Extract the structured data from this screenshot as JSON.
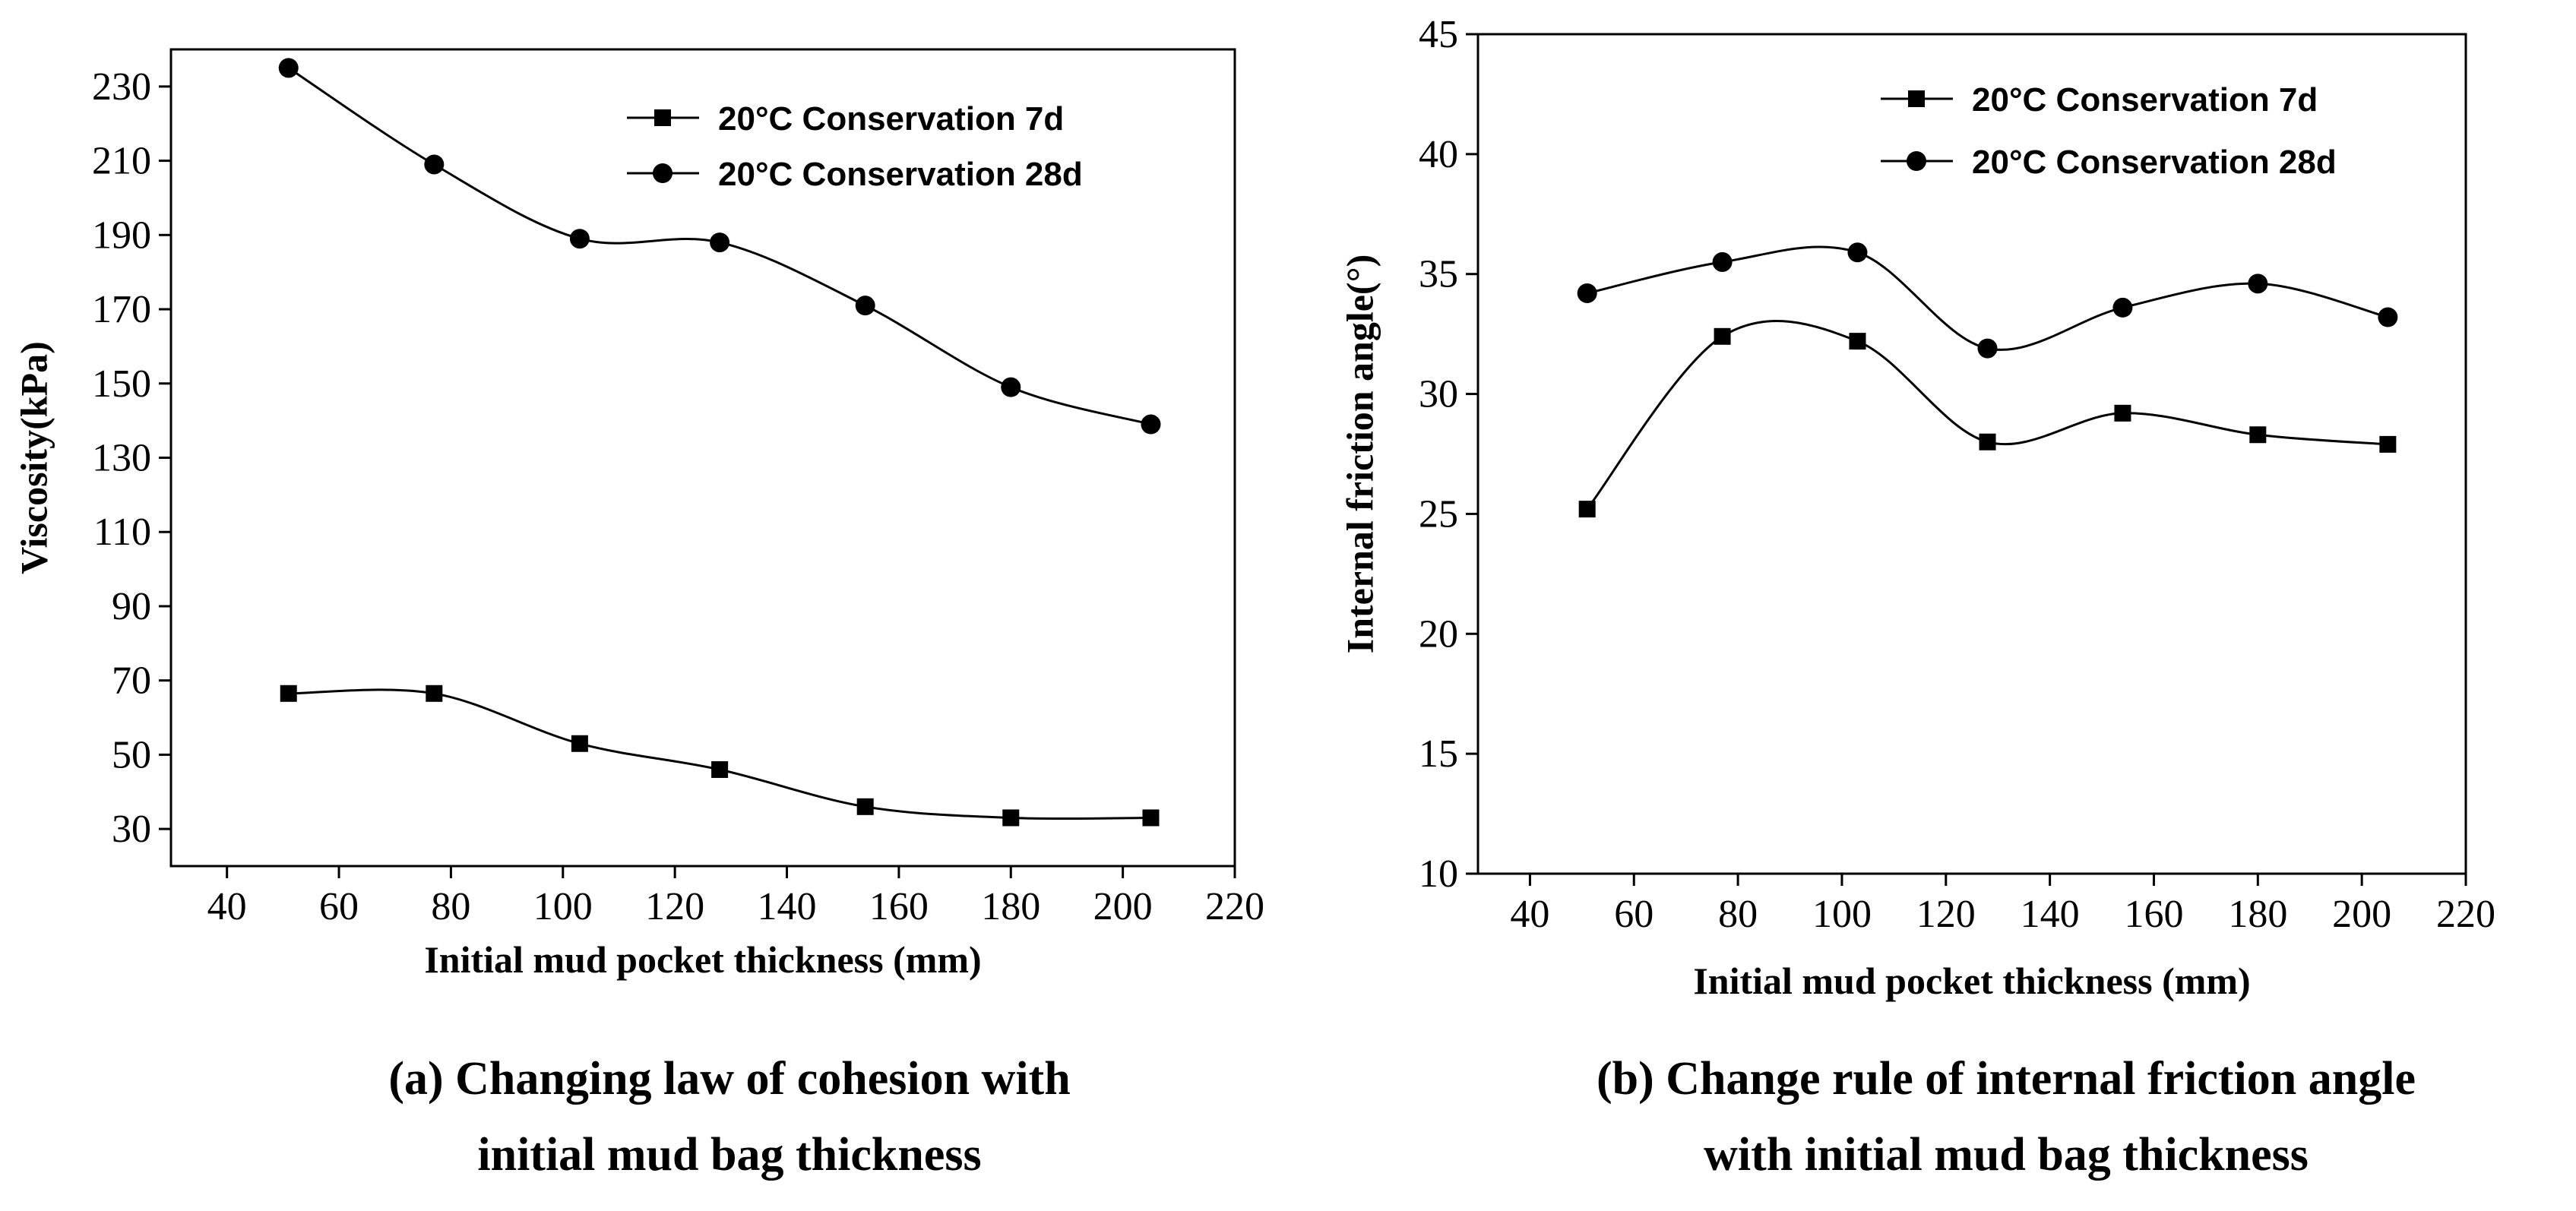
{
  "chart_data": [
    {
      "type": "line",
      "caption": [
        "(a) Changing law of cohesion with",
        "initial mud bag thickness"
      ],
      "xlabel": "Initial mud pocket thickness (mm)",
      "ylabel": "Viscosity(kPa)",
      "xlim": [
        30,
        220
      ],
      "ylim": [
        20,
        240
      ],
      "xticks": [
        40,
        60,
        80,
        100,
        120,
        140,
        160,
        180,
        200,
        220
      ],
      "yticks": [
        30,
        50,
        70,
        90,
        110,
        130,
        150,
        170,
        190,
        210,
        230
      ],
      "legend_position": "top-right",
      "series": [
        {
          "name": "20°C Conservation 7d",
          "marker": "square",
          "x": [
            51,
            77,
            103,
            128,
            154,
            180,
            205
          ],
          "y": [
            66.5,
            66.5,
            53,
            46,
            36,
            33,
            33
          ]
        },
        {
          "name": "20°C Conservation 28d",
          "marker": "circle",
          "x": [
            51,
            77,
            103,
            128,
            154,
            180,
            205
          ],
          "y": [
            235,
            209,
            189,
            188,
            171,
            149,
            139
          ]
        }
      ]
    },
    {
      "type": "line",
      "caption": [
        "(b) Change rule of internal friction angle",
        "with initial mud bag thickness"
      ],
      "xlabel": "Initial mud pocket thickness (mm)",
      "ylabel": "Internal friction angle(°)",
      "xlim": [
        30,
        220
      ],
      "ylim": [
        10,
        45
      ],
      "xticks": [
        40,
        60,
        80,
        100,
        120,
        140,
        160,
        180,
        200,
        220
      ],
      "yticks": [
        10,
        15,
        20,
        25,
        30,
        35,
        40,
        45
      ],
      "legend_position": "top-right",
      "series": [
        {
          "name": "20°C Conservation 7d",
          "marker": "square",
          "x": [
            51,
            77,
            103,
            128,
            154,
            180,
            205
          ],
          "y": [
            25.2,
            32.4,
            32.2,
            28,
            29.2,
            28.3,
            27.9
          ]
        },
        {
          "name": "20°C Conservation 28d",
          "marker": "circle",
          "x": [
            51,
            77,
            103,
            128,
            154,
            180,
            205
          ],
          "y": [
            34.2,
            35.5,
            35.9,
            31.9,
            33.6,
            34.6,
            33.2
          ]
        }
      ]
    }
  ]
}
